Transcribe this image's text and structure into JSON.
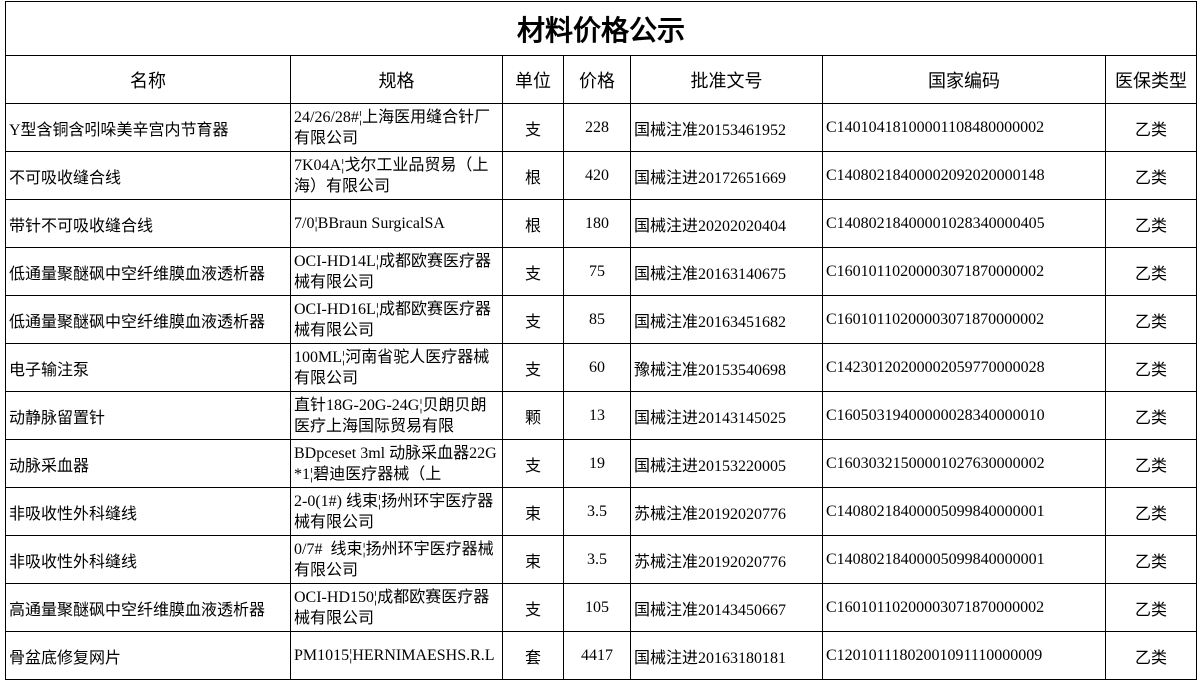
{
  "table": {
    "title": "材料价格公示",
    "header": [
      "名称",
      "规格",
      "单位",
      "价格",
      "批准文号",
      "国家编码",
      "医保类型"
    ],
    "rows": [
      [
        "Y型含铜含吲哚美辛宫内节育器",
        "24/26/28#¦上海医用缝合针厂有限公司",
        "支",
        "228",
        "国械注准20153461952",
        "C14010418100001108480000002",
        "乙类"
      ],
      [
        "不可吸收缝合线",
        "7K04A¦戈尔工业品贸易（上海）有限公司",
        "根",
        "420",
        "国械注进20172651669",
        "C14080218400002092020000148",
        "乙类"
      ],
      [
        "带针不可吸收缝合线",
        "7/0¦BBraun SurgicalSA",
        "根",
        "180",
        "国械注进20202020404",
        "C14080218400001028340000405",
        "乙类"
      ],
      [
        "低通量聚醚砜中空纤维膜血液透析器",
        "OCI-HD14L¦成都欧赛医疗器械有限公司",
        "支",
        "75",
        "国械注准20163140675",
        "C16010110200003071870000002",
        "乙类"
      ],
      [
        "低通量聚醚砜中空纤维膜血液透析器",
        "OCI-HD16L¦成都欧赛医疗器械有限公司",
        "支",
        "85",
        "国械注准20163451682",
        "C16010110200003071870000002",
        "乙类"
      ],
      [
        "电子输注泵",
        "100ML¦河南省驼人医疗器械有限公司",
        "支",
        "60",
        "豫械注准20153540698",
        "C14230120200002059770000028",
        "乙类"
      ],
      [
        "动静脉留置针",
        "直针18G-20G-24G¦贝朗贝朗医疗上海国际贸易有限",
        "颗",
        "13",
        "国械注进20143145025",
        "C16050319400000028340000010",
        "乙类"
      ],
      [
        "动脉采血器",
        "BDpceset 3ml 动脉采血器22G*1¦碧迪医疗器械（上",
        "支",
        "19",
        "国械注进20153220005",
        "C16030321500001027630000002",
        "乙类"
      ],
      [
        "非吸收性外科缝线",
        "2-0(1#) 线束¦扬州环宇医疗器械有限公司",
        "束",
        "3.5",
        "苏械注准20192020776",
        "C14080218400005099840000001",
        "乙类"
      ],
      [
        "非吸收性外科缝线",
        "0/7#  线束¦扬州环宇医疗器械有限公司",
        "束",
        "3.5",
        "苏械注准20192020776",
        "C14080218400005099840000001",
        "乙类"
      ],
      [
        "高通量聚醚砜中空纤维膜血液透析器",
        "OCI-HD150¦成都欧赛医疗器械有限公司",
        "支",
        "105",
        "国械注准20143450667",
        "C16010110200003071870000002",
        "乙类"
      ],
      [
        "骨盆底修复网片",
        "PM1015¦HERNIMAESHS.R.L",
        "套",
        "4417",
        "国械注进20163180181",
        "C12010111802001091110000009",
        "乙类"
      ]
    ]
  }
}
